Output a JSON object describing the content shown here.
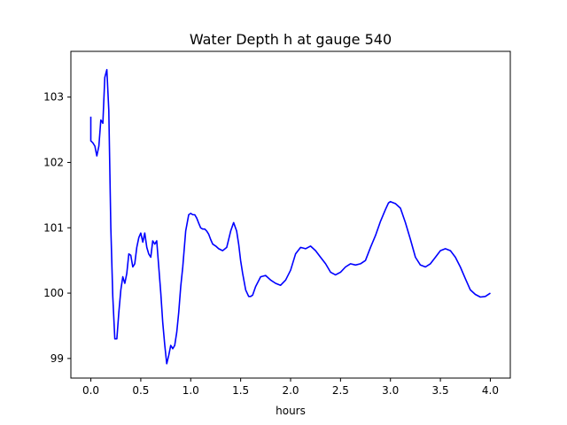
{
  "chart_data": {
    "type": "line",
    "title": "Water Depth h at gauge 540",
    "xlabel": "hours",
    "ylabel": "",
    "xlim": [
      -0.2,
      4.2
    ],
    "ylim": [
      98.7,
      103.7
    ],
    "xticks": [
      0.0,
      0.5,
      1.0,
      1.5,
      2.0,
      2.5,
      3.0,
      3.5,
      4.0
    ],
    "xtick_labels": [
      "0.0",
      "0.5",
      "1.0",
      "1.5",
      "2.0",
      "2.5",
      "3.0",
      "3.5",
      "4.0"
    ],
    "yticks": [
      99,
      100,
      101,
      102,
      103
    ],
    "ytick_labels": [
      "99",
      "100",
      "101",
      "102",
      "103"
    ],
    "grid": false,
    "legend": "none",
    "series": [
      {
        "color": "#0000ff",
        "x": [
          0.0,
          0.0,
          0.02,
          0.04,
          0.06,
          0.08,
          0.1,
          0.12,
          0.14,
          0.16,
          0.18,
          0.2,
          0.22,
          0.24,
          0.26,
          0.28,
          0.3,
          0.32,
          0.34,
          0.36,
          0.38,
          0.4,
          0.42,
          0.44,
          0.46,
          0.48,
          0.5,
          0.52,
          0.54,
          0.56,
          0.58,
          0.6,
          0.62,
          0.64,
          0.66,
          0.68,
          0.7,
          0.72,
          0.74,
          0.76,
          0.78,
          0.8,
          0.82,
          0.84,
          0.86,
          0.88,
          0.9,
          0.92,
          0.95,
          0.98,
          1.0,
          1.02,
          1.04,
          1.06,
          1.08,
          1.1,
          1.12,
          1.14,
          1.16,
          1.18,
          1.2,
          1.22,
          1.25,
          1.28,
          1.32,
          1.36,
          1.4,
          1.43,
          1.46,
          1.48,
          1.5,
          1.52,
          1.55,
          1.58,
          1.6,
          1.62,
          1.65,
          1.7,
          1.75,
          1.8,
          1.85,
          1.9,
          1.95,
          2.0,
          2.05,
          2.1,
          2.15,
          2.2,
          2.25,
          2.3,
          2.35,
          2.4,
          2.45,
          2.5,
          2.55,
          2.6,
          2.65,
          2.7,
          2.75,
          2.8,
          2.85,
          2.9,
          2.95,
          2.98,
          3.0,
          3.05,
          3.1,
          3.15,
          3.2,
          3.25,
          3.3,
          3.35,
          3.4,
          3.45,
          3.5,
          3.55,
          3.6,
          3.65,
          3.7,
          3.75,
          3.8,
          3.85,
          3.9,
          3.95,
          4.0
        ],
        "y": [
          102.7,
          102.33,
          102.3,
          102.25,
          102.1,
          102.25,
          102.65,
          102.6,
          103.3,
          103.42,
          102.8,
          101.0,
          99.95,
          99.3,
          99.3,
          99.7,
          100.05,
          100.25,
          100.15,
          100.3,
          100.6,
          100.58,
          100.4,
          100.45,
          100.7,
          100.85,
          100.92,
          100.78,
          100.92,
          100.7,
          100.6,
          100.55,
          100.8,
          100.75,
          100.8,
          100.4,
          100.0,
          99.55,
          99.2,
          98.92,
          99.05,
          99.2,
          99.15,
          99.2,
          99.4,
          99.7,
          100.1,
          100.4,
          100.95,
          101.2,
          101.22,
          101.2,
          101.2,
          101.15,
          101.07,
          101.0,
          100.98,
          100.98,
          100.95,
          100.9,
          100.82,
          100.75,
          100.72,
          100.68,
          100.65,
          100.7,
          100.95,
          101.08,
          100.95,
          100.75,
          100.5,
          100.3,
          100.05,
          99.95,
          99.95,
          99.97,
          100.1,
          100.25,
          100.27,
          100.2,
          100.15,
          100.12,
          100.2,
          100.35,
          100.6,
          100.7,
          100.68,
          100.72,
          100.65,
          100.55,
          100.45,
          100.32,
          100.28,
          100.32,
          100.4,
          100.45,
          100.43,
          100.45,
          100.5,
          100.7,
          100.88,
          101.1,
          101.28,
          101.38,
          101.4,
          101.37,
          101.3,
          101.08,
          100.82,
          100.55,
          100.43,
          100.4,
          100.45,
          100.55,
          100.65,
          100.68,
          100.65,
          100.55,
          100.4,
          100.22,
          100.05,
          99.98,
          99.94,
          99.95,
          100.0
        ]
      }
    ]
  }
}
